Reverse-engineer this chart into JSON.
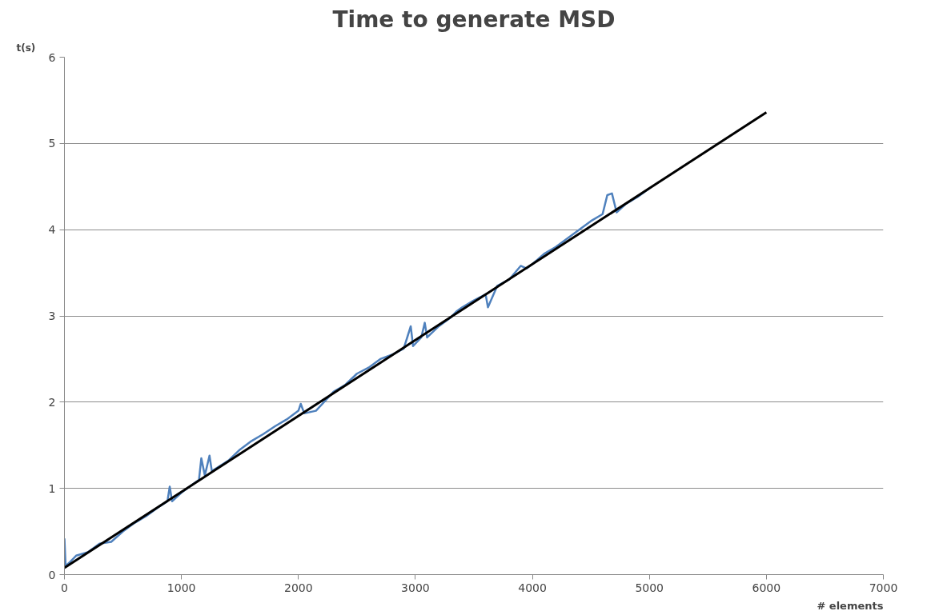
{
  "chart_data": {
    "type": "line",
    "title": "Time to generate MSD",
    "xlabel": "# elements",
    "ylabel": "t(s)",
    "xlim": [
      0,
      7000
    ],
    "xticks": [
      0,
      1000,
      2000,
      3000,
      4000,
      5000,
      6000,
      7000
    ],
    "ylim": [
      0,
      6
    ],
    "yticks": [
      0,
      1,
      2,
      3,
      4,
      5,
      6
    ],
    "grid": "y",
    "marker": "none",
    "line_style": "solid",
    "series": [
      {
        "color": "#4f81bd",
        "x": [
          0,
          10,
          50,
          100,
          200,
          300,
          400,
          500,
          600,
          700,
          800,
          880,
          900,
          920,
          1000,
          1100,
          1150,
          1170,
          1200,
          1240,
          1260,
          1400,
          1500,
          1600,
          1700,
          1800,
          1900,
          2000,
          2020,
          2050,
          2150,
          2300,
          2400,
          2500,
          2600,
          2700,
          2800,
          2900,
          2960,
          2980,
          3050,
          3080,
          3100,
          3200,
          3300,
          3350,
          3400,
          3500,
          3600,
          3620,
          3700,
          3800,
          3900,
          3950,
          4000,
          4100,
          4200,
          4300,
          4400,
          4500,
          4600,
          4640,
          4680,
          4720,
          4800,
          4900,
          5000
        ],
        "values": [
          0.42,
          0.1,
          0.15,
          0.22,
          0.26,
          0.36,
          0.38,
          0.5,
          0.6,
          0.68,
          0.78,
          0.85,
          1.02,
          0.85,
          0.95,
          1.05,
          1.1,
          1.35,
          1.15,
          1.38,
          1.2,
          1.32,
          1.45,
          1.55,
          1.63,
          1.72,
          1.8,
          1.9,
          1.98,
          1.87,
          1.9,
          2.12,
          2.2,
          2.33,
          2.4,
          2.5,
          2.55,
          2.62,
          2.88,
          2.65,
          2.75,
          2.92,
          2.75,
          2.88,
          2.98,
          3.05,
          3.1,
          3.18,
          3.25,
          3.1,
          3.35,
          3.42,
          3.58,
          3.55,
          3.6,
          3.72,
          3.8,
          3.9,
          4.0,
          4.1,
          4.18,
          4.4,
          4.42,
          4.2,
          4.3,
          4.38,
          4.48
        ]
      },
      {
        "color": "#000000",
        "x": [
          0,
          6000
        ],
        "values": [
          0.08,
          5.36
        ]
      }
    ]
  }
}
